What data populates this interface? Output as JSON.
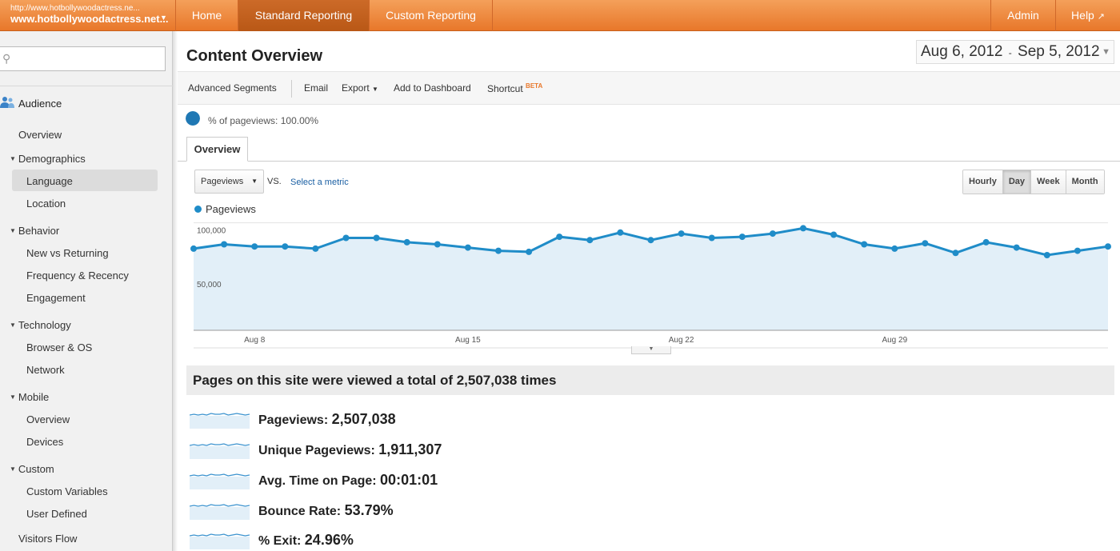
{
  "header": {
    "account_url": "http://www.hotbollywoodactress.ne...",
    "account_name": "www.hotbollywoodactress.net...",
    "nav": [
      "Home",
      "Standard Reporting",
      "Custom Reporting"
    ],
    "admin": "Admin",
    "help": "Help"
  },
  "sidebar": {
    "search_placeholder": "",
    "section": "Audience",
    "items": [
      {
        "label": "Overview"
      },
      {
        "label": "Demographics"
      },
      {
        "label": "Language"
      },
      {
        "label": "Location"
      },
      {
        "label": "Behavior"
      },
      {
        "label": "New vs Returning"
      },
      {
        "label": "Frequency & Recency"
      },
      {
        "label": "Engagement"
      },
      {
        "label": "Technology"
      },
      {
        "label": "Browser & OS"
      },
      {
        "label": "Network"
      },
      {
        "label": "Mobile"
      },
      {
        "label": "Overview"
      },
      {
        "label": "Devices"
      },
      {
        "label": "Custom"
      },
      {
        "label": "Custom Variables"
      },
      {
        "label": "User Defined"
      },
      {
        "label": "Visitors Flow"
      }
    ]
  },
  "page": {
    "title": "Content Overview",
    "date_start": "Aug 6, 2012",
    "date_sep": "-",
    "date_end": "Sep 5, 2012"
  },
  "toolbar": {
    "advanced_segments": "Advanced Segments",
    "email": "Email",
    "export": "Export",
    "add_to_dashboard": "Add to Dashboard",
    "shortcut": "Shortcut",
    "beta": "BETA"
  },
  "segment": {
    "label": "% of pageviews: 100.00%"
  },
  "tabs": {
    "overview": "Overview"
  },
  "controls": {
    "metric": "Pageviews",
    "vs": "VS.",
    "select_metric": "Select a metric",
    "granularity": [
      "Hourly",
      "Day",
      "Week",
      "Month"
    ],
    "active_granularity": "Day"
  },
  "chart_data": {
    "type": "area",
    "series": [
      {
        "name": "Pageviews",
        "values": [
          76000,
          80000,
          78000,
          78000,
          76000,
          86000,
          86000,
          82000,
          80000,
          77000,
          74000,
          73000,
          87000,
          84000,
          91000,
          84000,
          90000,
          86000,
          87000,
          90000,
          95000,
          89000,
          80000,
          76000,
          81000,
          72000,
          82000,
          77000,
          70000,
          74000,
          78000
        ]
      }
    ],
    "start_day": 6,
    "x_tick_labels": [
      "Aug 8",
      "Aug 15",
      "Aug 22",
      "Aug 29"
    ],
    "x_tick_index": [
      2,
      9,
      16,
      23
    ],
    "y_tick_labels": [
      "100,000",
      "50,000"
    ],
    "y_ticks": [
      100000,
      50000
    ],
    "ylim": [
      0,
      100000
    ],
    "colors": {
      "line": "#1f8cc8",
      "fill": "#e2eff8"
    },
    "grid": true
  },
  "summary": {
    "text": "Pages on this site were viewed a total of 2,507,038 times"
  },
  "metrics": [
    {
      "label": "Pageviews:",
      "value": "2,507,038"
    },
    {
      "label": "Unique Pageviews:",
      "value": "1,911,307"
    },
    {
      "label": "Avg. Time on Page:",
      "value": "00:01:01"
    },
    {
      "label": "Bounce Rate:",
      "value": "53.79%"
    },
    {
      "label": "% Exit:",
      "value": "24.96%"
    }
  ]
}
